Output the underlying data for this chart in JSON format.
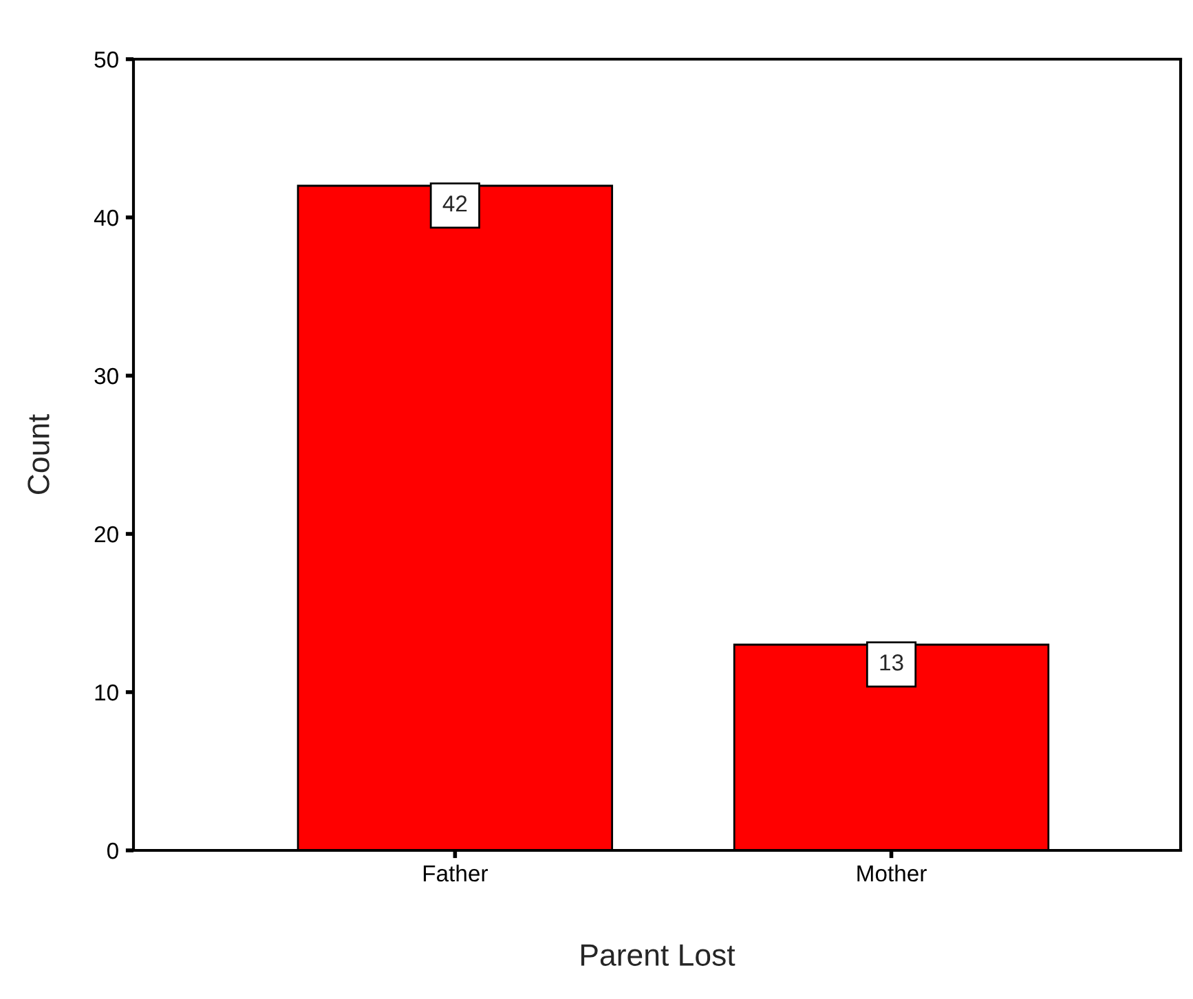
{
  "chart_data": {
    "type": "bar",
    "xlabel": "Parent Lost",
    "ylabel": "Count",
    "categories": [
      "Father",
      "Mother"
    ],
    "values": [
      42,
      13
    ],
    "color": "#ff0000",
    "ylim": [
      0,
      50
    ],
    "yticks": [
      0,
      10,
      20,
      30,
      40,
      50
    ],
    "data_labels": true,
    "grid": false,
    "legend": false
  }
}
